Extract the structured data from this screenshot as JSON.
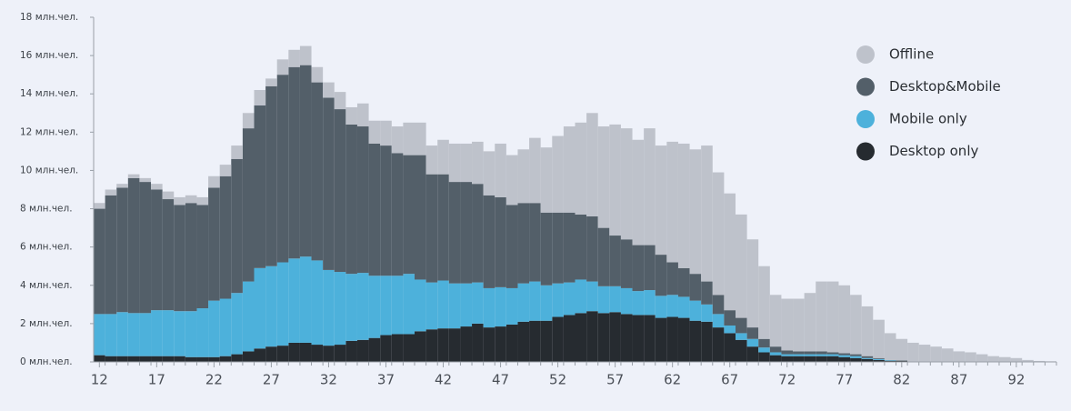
{
  "chart_data": {
    "type": "stacked_bar",
    "x": [
      12,
      13,
      14,
      15,
      16,
      17,
      18,
      19,
      20,
      21,
      22,
      23,
      24,
      25,
      26,
      27,
      28,
      29,
      30,
      31,
      32,
      33,
      34,
      35,
      36,
      37,
      38,
      39,
      40,
      41,
      42,
      43,
      44,
      45,
      46,
      47,
      48,
      49,
      50,
      51,
      52,
      53,
      54,
      55,
      56,
      57,
      58,
      59,
      60,
      61,
      62,
      63,
      64,
      65,
      66,
      67,
      68,
      69,
      70,
      71,
      72,
      73,
      74,
      75,
      76,
      77,
      78,
      79,
      80,
      81,
      82,
      83,
      84,
      85,
      86,
      87,
      88,
      89,
      90,
      91,
      92,
      93,
      94,
      95
    ],
    "xlim": [
      11.5,
      95.5
    ],
    "xticks": [
      12,
      17,
      22,
      27,
      32,
      37,
      42,
      47,
      52,
      57,
      62,
      67,
      72,
      77,
      82,
      87,
      92
    ],
    "ylim": [
      0,
      18
    ],
    "yticks": [
      {
        "value": 0,
        "label": "0 млн.чел."
      },
      {
        "value": 2,
        "label": "2 млн.чел."
      },
      {
        "value": 4,
        "label": "4 млн.чел."
      },
      {
        "value": 6,
        "label": "6 млн.чел."
      },
      {
        "value": 8,
        "label": "8 млн.чел."
      },
      {
        "value": 10,
        "label": "10 млн.чел."
      },
      {
        "value": 12,
        "label": "12 млн.чел."
      },
      {
        "value": 14,
        "label": "14 млн.чел."
      },
      {
        "value": 16,
        "label": "16 млн.чел."
      },
      {
        "value": 18,
        "label": "18 млн.чел."
      }
    ],
    "series": [
      {
        "name": "Desktop only",
        "color": "#262b30",
        "values": [
          0.35,
          0.3,
          0.3,
          0.3,
          0.3,
          0.3,
          0.3,
          0.3,
          0.25,
          0.25,
          0.25,
          0.3,
          0.4,
          0.55,
          0.7,
          0.8,
          0.85,
          1.0,
          1.0,
          0.9,
          0.85,
          0.9,
          1.1,
          1.15,
          1.25,
          1.4,
          1.45,
          1.45,
          1.6,
          1.7,
          1.75,
          1.75,
          1.85,
          2.0,
          1.8,
          1.85,
          1.95,
          2.1,
          2.15,
          2.15,
          2.35,
          2.45,
          2.55,
          2.65,
          2.55,
          2.6,
          2.5,
          2.45,
          2.45,
          2.3,
          2.35,
          2.3,
          2.15,
          2.1,
          1.8,
          1.5,
          1.15,
          0.8,
          0.5,
          0.35,
          0.3,
          0.3,
          0.3,
          0.3,
          0.3,
          0.25,
          0.2,
          0.15,
          0.1,
          0.05,
          0.05,
          0,
          0,
          0,
          0,
          0,
          0,
          0,
          0,
          0,
          0,
          0,
          0,
          0
        ]
      },
      {
        "name": "Mobile only",
        "color": "#4db1db",
        "values": [
          2.15,
          2.2,
          2.3,
          2.25,
          2.25,
          2.4,
          2.4,
          2.35,
          2.4,
          2.55,
          2.95,
          3.0,
          3.2,
          3.65,
          4.2,
          4.2,
          4.35,
          4.4,
          4.5,
          4.4,
          3.95,
          3.8,
          3.5,
          3.5,
          3.25,
          3.1,
          3.05,
          3.15,
          2.7,
          2.45,
          2.5,
          2.35,
          2.25,
          2.15,
          2.05,
          2.05,
          1.9,
          2.0,
          2.05,
          1.85,
          1.75,
          1.7,
          1.75,
          1.55,
          1.4,
          1.35,
          1.35,
          1.25,
          1.3,
          1.15,
          1.15,
          1.1,
          1.05,
          0.9,
          0.7,
          0.4,
          0.35,
          0.4,
          0.25,
          0.15,
          0.1,
          0.1,
          0.1,
          0.1,
          0.1,
          0.1,
          0.1,
          0.05,
          0.05,
          0.03,
          0,
          0,
          0,
          0,
          0,
          0,
          0,
          0,
          0,
          0,
          0,
          0,
          0,
          0
        ]
      },
      {
        "name": "Desktop&Mobile",
        "color": "#535f69",
        "values": [
          5.5,
          6.2,
          6.5,
          7.05,
          6.85,
          6.3,
          5.8,
          5.55,
          5.65,
          5.4,
          5.9,
          6.4,
          7.0,
          8.0,
          8.5,
          9.4,
          9.8,
          10.0,
          10.0,
          9.3,
          9.0,
          8.5,
          7.8,
          7.65,
          6.9,
          6.8,
          6.4,
          6.2,
          6.5,
          5.65,
          5.55,
          5.3,
          5.3,
          5.15,
          4.85,
          4.7,
          4.35,
          4.2,
          4.1,
          3.8,
          3.7,
          3.65,
          3.4,
          3.4,
          3.05,
          2.65,
          2.55,
          2.4,
          2.35,
          2.15,
          1.7,
          1.5,
          1.4,
          1.2,
          1.0,
          0.8,
          0.8,
          0.6,
          0.45,
          0.3,
          0.2,
          0.15,
          0.15,
          0.15,
          0.1,
          0.1,
          0.1,
          0.1,
          0.05,
          0.02,
          0.03,
          0,
          0,
          0,
          0,
          0,
          0,
          0,
          0,
          0,
          0,
          0,
          0,
          0
        ]
      },
      {
        "name": "Offline",
        "color": "#bec2cb",
        "values": [
          0.3,
          0.3,
          0.2,
          0.2,
          0.2,
          0.3,
          0.4,
          0.4,
          0.4,
          0.4,
          0.6,
          0.6,
          0.7,
          0.8,
          0.8,
          0.4,
          0.8,
          0.9,
          1.0,
          0.8,
          0.8,
          0.9,
          0.9,
          1.2,
          1.2,
          1.3,
          1.4,
          1.7,
          1.7,
          1.5,
          1.8,
          2.0,
          2.0,
          2.2,
          2.3,
          2.8,
          2.6,
          2.8,
          3.4,
          3.4,
          4.0,
          4.5,
          4.8,
          5.4,
          5.3,
          5.8,
          5.8,
          5.5,
          6.1,
          5.7,
          6.3,
          6.5,
          6.5,
          7.1,
          6.4,
          6.1,
          5.4,
          4.6,
          3.8,
          2.7,
          2.7,
          2.75,
          3.05,
          3.65,
          3.7,
          3.55,
          3.1,
          2.6,
          2.0,
          1.4,
          1.12,
          1.0,
          0.9,
          0.8,
          0.7,
          0.55,
          0.5,
          0.4,
          0.3,
          0.25,
          0.2,
          0.1,
          0.05,
          0.03
        ]
      }
    ],
    "legend": "top-right"
  }
}
